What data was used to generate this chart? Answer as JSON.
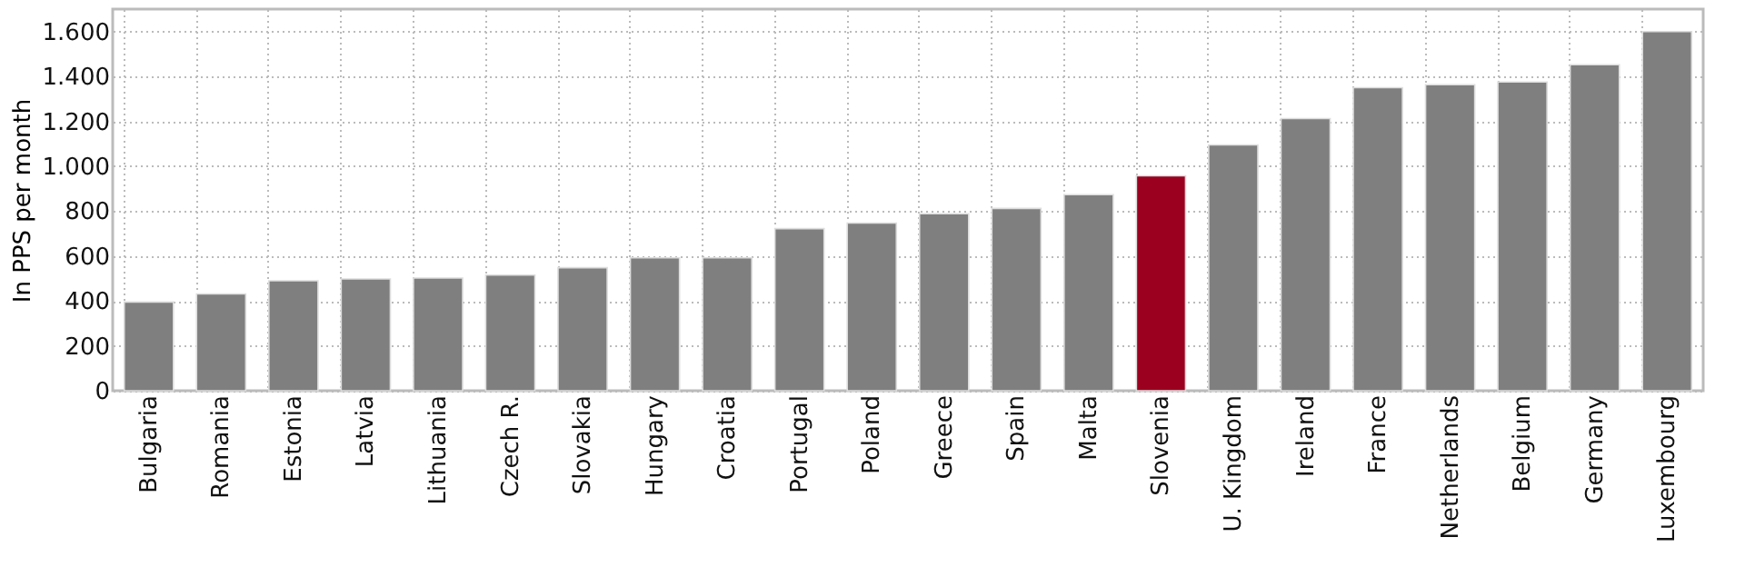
{
  "chart_data": {
    "type": "bar",
    "ylabel": "In PPS per month",
    "categories": [
      "Bulgaria",
      "Romania",
      "Estonia",
      "Latvia",
      "Lithuania",
      "Czech R.",
      "Slovakia",
      "Hungary",
      "Croatia",
      "Portugal",
      "Poland",
      "Greece",
      "Spain",
      "Malta",
      "Slovenia",
      "U. Kingdom",
      "Ireland",
      "France",
      "Netherlands",
      "Belgium",
      "Germany",
      "Luxembourg"
    ],
    "values": [
      395,
      431,
      490,
      498,
      502,
      515,
      548,
      592,
      592,
      722,
      747,
      788,
      812,
      873,
      957,
      1095,
      1212,
      1350,
      1363,
      1375,
      1452,
      1600
    ],
    "colors": [
      "#7f7f7f",
      "#7f7f7f",
      "#7f7f7f",
      "#7f7f7f",
      "#7f7f7f",
      "#7f7f7f",
      "#7f7f7f",
      "#7f7f7f",
      "#7f7f7f",
      "#7f7f7f",
      "#7f7f7f",
      "#7f7f7f",
      "#7f7f7f",
      "#7f7f7f",
      "#9b001f",
      "#7f7f7f",
      "#7f7f7f",
      "#7f7f7f",
      "#7f7f7f",
      "#7f7f7f",
      "#7f7f7f",
      "#7f7f7f"
    ],
    "ylim": [
      0,
      1700
    ],
    "yticks": [
      0,
      200,
      400,
      600,
      800,
      {
        "value": 1000,
        "label": "1.000"
      },
      {
        "value": 1200,
        "label": "1.200"
      },
      {
        "value": 1400,
        "label": "1.400"
      },
      {
        "value": 1600,
        "label": "1.600"
      }
    ],
    "grid": true
  }
}
